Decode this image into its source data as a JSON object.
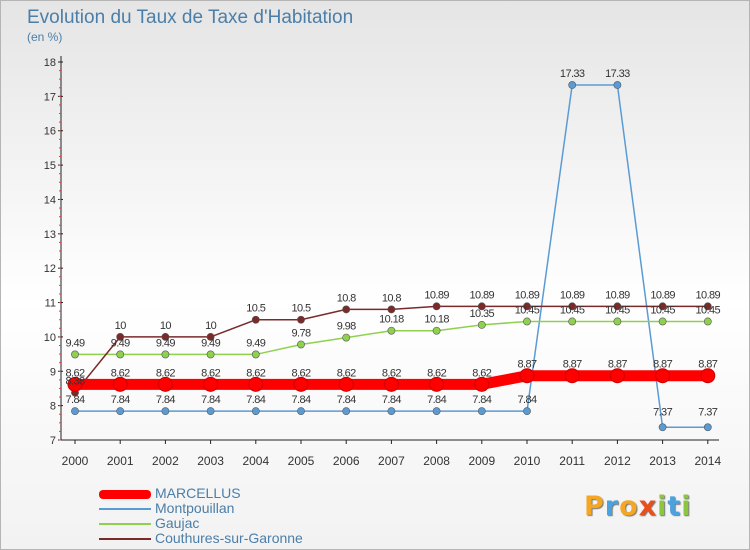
{
  "chart_data": {
    "type": "line",
    "title": "Evolution du Taux de Taxe d'Habitation",
    "ylabel": "(en %)",
    "ylim": [
      7,
      18
    ],
    "yticks": [
      "18",
      "17",
      "16",
      "15",
      "14",
      "13",
      "12",
      "11",
      "10",
      "9",
      "8",
      "7"
    ],
    "categories": [
      "2000",
      "2001",
      "2002",
      "2003",
      "2004",
      "2005",
      "2006",
      "2007",
      "2008",
      "2009",
      "2010",
      "2011",
      "2012",
      "2013",
      "2014"
    ],
    "series": [
      {
        "name": "MARCELLUS",
        "color": "#ff0000",
        "values": [
          8.62,
          8.62,
          8.62,
          8.62,
          8.62,
          8.62,
          8.62,
          8.62,
          8.62,
          8.62,
          8.87,
          8.87,
          8.87,
          8.87,
          8.87
        ],
        "labels": [
          "8.62",
          "8.62",
          "8.62",
          "8.62",
          "8.62",
          "8.62",
          "8.62",
          "8.62",
          "8.62",
          "8.62",
          "8.87",
          "8.87",
          "8.87",
          "8.87",
          "8.87"
        ]
      },
      {
        "name": "Montpouillan",
        "color": "#5b9bd5",
        "values": [
          7.84,
          7.84,
          7.84,
          7.84,
          7.84,
          7.84,
          7.84,
          7.84,
          7.84,
          7.84,
          7.84,
          17.33,
          17.33,
          7.37,
          7.37
        ],
        "labels": [
          "7.84",
          "7.84",
          "7.84",
          "7.84",
          "7.84",
          "7.84",
          "7.84",
          "7.84",
          "7.84",
          "7.84",
          "7.84",
          "17.33",
          "17.33",
          "7.37",
          "7.37"
        ]
      },
      {
        "name": "Gaujac",
        "color": "#8fd14f",
        "values": [
          9.49,
          9.49,
          9.49,
          9.49,
          9.49,
          9.78,
          9.98,
          10.18,
          10.18,
          10.35,
          10.45,
          10.45,
          10.45,
          10.45,
          10.45
        ],
        "labels": [
          "9.49",
          "9.49",
          "9.49",
          "9.49",
          "9.49",
          "9.78",
          "9.98",
          "10.18",
          "10.18",
          "10.35",
          "10.45",
          "10.45",
          "10.45",
          "10.45",
          "10.45"
        ]
      },
      {
        "name": "Couthures-sur-Garonne",
        "color": "#7b2a2a",
        "values": [
          8.38,
          10,
          10,
          10,
          10.5,
          10.5,
          10.8,
          10.8,
          10.89,
          10.89,
          10.89,
          10.89,
          10.89,
          10.89,
          10.89
        ],
        "labels": [
          "8.38",
          "10",
          "10",
          "10",
          "10.5",
          "10.5",
          "10.8",
          "10.8",
          "10.89",
          "10.89",
          "10.89",
          "10.89",
          "10.89",
          "10.89",
          "10.89"
        ]
      }
    ]
  },
  "brand": {
    "letters": [
      "P",
      "r",
      "o",
      "x",
      "i",
      "t",
      "i"
    ],
    "colors": [
      "#f5a623",
      "#4aa3df",
      "#f5a623",
      "#e94e1b",
      "#8cc63f",
      "#4aa3df",
      "#8cc63f"
    ]
  }
}
